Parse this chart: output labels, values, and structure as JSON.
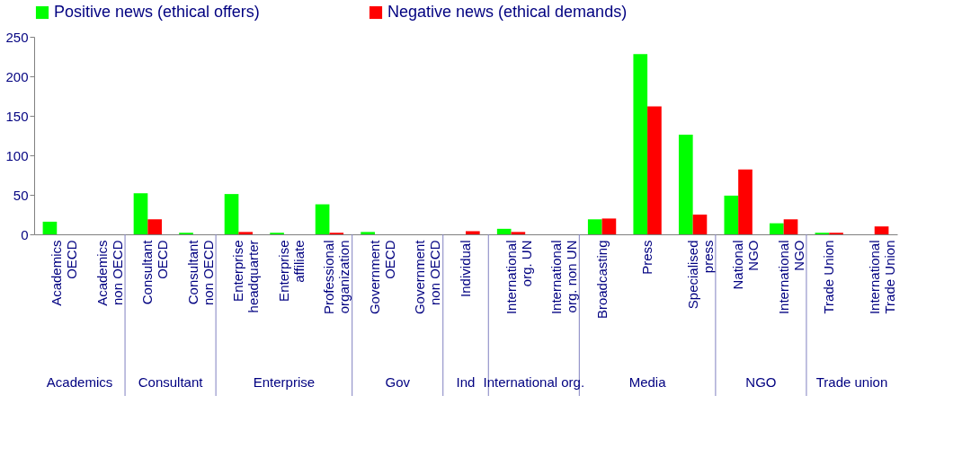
{
  "chart_data": {
    "type": "bar",
    "categories": [
      "Academics OECD",
      "Academics non OECD",
      "Consultant OECD",
      "Consultant non OECD",
      "Enterprise headquarter",
      "Enterprise affiliate",
      "Professional organization",
      "Government OECD",
      "Government non OECD",
      "Individual",
      "International org. UN",
      "International org. non UN",
      "Broadcasting",
      "Press",
      "Specialised press",
      "National NGO",
      "International NGO",
      "Trade Union",
      "International Trade Union"
    ],
    "series": [
      {
        "name": "Positive news (ethical offers)",
        "color": "#00ff00",
        "values": [
          16,
          0,
          52,
          2,
          51,
          2,
          38,
          3,
          0,
          0,
          7,
          0,
          19,
          228,
          126,
          49,
          14,
          2,
          0
        ]
      },
      {
        "name": "Negative news (ethical demands)",
        "color": "#ff0000",
        "values": [
          0,
          0,
          19,
          0,
          3,
          0,
          2,
          0,
          0,
          4,
          3,
          0,
          20,
          162,
          25,
          82,
          19,
          2,
          10
        ]
      }
    ],
    "annotations": [
      "Academics",
      "Consultant",
      "Enterprise",
      "Gov",
      "Ind",
      "International org.",
      "Media",
      "NGO",
      "Trade union"
    ],
    "ylim": [
      0,
      250
    ],
    "yticks": [
      0,
      50,
      100,
      150,
      200,
      250
    ],
    "grid": false,
    "legend": "top"
  }
}
